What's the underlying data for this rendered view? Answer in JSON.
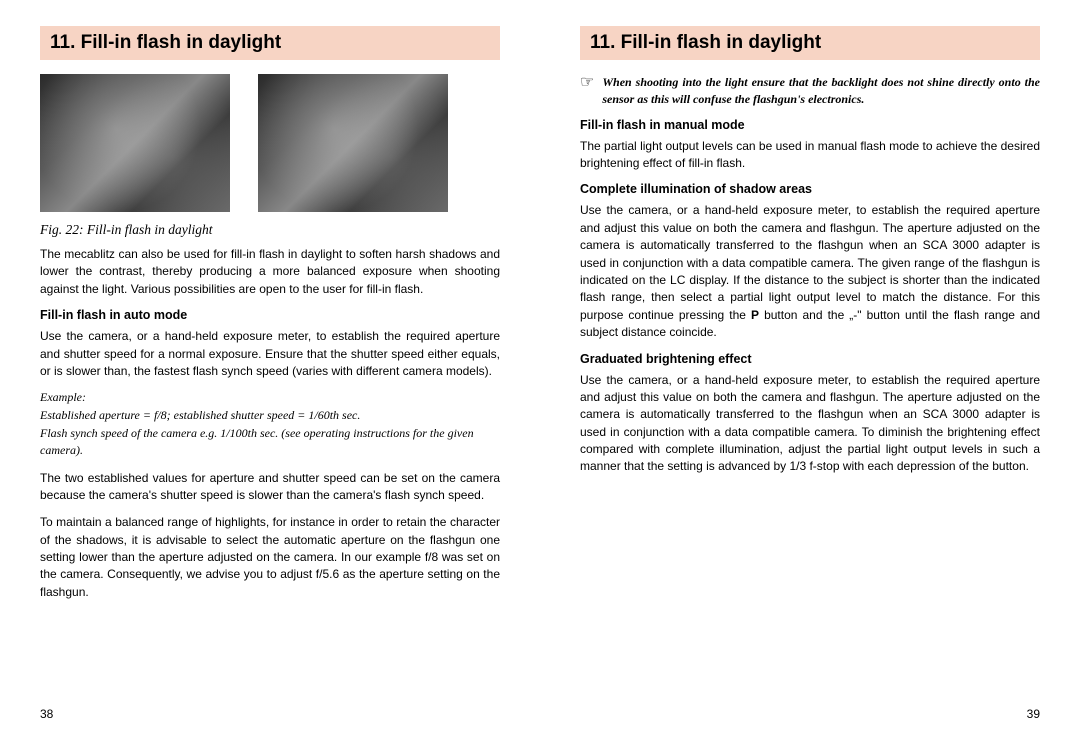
{
  "left": {
    "header": "11. Fill-in flash in daylight",
    "fig_caption": "Fig. 22: Fill-in flash in daylight",
    "intro": "The mecablitz can also be used for fill-in flash in daylight to soften harsh shadows and lower the contrast, thereby producing a more balanced exposure when shooting against the light. Various possibilities are open to the user for fill-in flash.",
    "sub1": "Fill-in flash in auto mode",
    "p1": "Use the camera, or a hand-held exposure meter, to establish the required aperture and shutter speed for a normal exposure. Ensure that the shutter speed either equals, or is slower than, the fastest flash synch speed (varies with different camera models).",
    "example_label": "Example:",
    "example_body": "Established aperture = f/8; established shutter speed = 1/60th sec.\nFlash synch speed of the camera e.g. 1/100th sec. (see operating instructions for the given camera).",
    "p2": "The two established values for aperture and shutter speed can be set on the camera because the camera's shutter speed is slower than the camera's flash synch speed.",
    "p3": "To maintain a balanced range of highlights, for instance in order to retain the character of the shadows, it is advisable to select the automatic aperture on the flashgun one setting lower than the aperture adjusted on the camera. In our example f/8 was set on the camera. Consequently, we advise you to adjust f/5.6 as the aperture setting on the flashgun.",
    "page_num": "38"
  },
  "right": {
    "header": "11. Fill-in flash in daylight",
    "note": "When shooting into the light ensure that the backlight does not shine directly onto the sensor as this will confuse the flashgun's electronics.",
    "sub1": "Fill-in flash in manual mode",
    "p1": "The partial light output levels can be used in manual flash mode to achieve the desired brightening effect of fill-in flash.",
    "sub2": "Complete illumination of shadow areas",
    "p2": "Use the camera, or a hand-held exposure meter, to establish the required aperture and adjust this value on both the camera and flashgun. The aperture adjusted on the camera is automatically transferred to the flashgun when an SCA 3000 adapter is used in conjunction with a data compatible camera. The given range of the flashgun is indicated on the LC display. If the distance to the subject is shorter than the indicated flash range, then select a partial light output level to match the distance. For this purpose continue pressing the P button and the „-\" button until the flash range and subject distance coincide.",
    "sub3": "Graduated brightening effect",
    "p3": "Use the camera, or a hand-held exposure meter, to establish the required aperture and adjust this value on both the camera and flashgun. The aperture adjusted on the camera is automatically transferred to the flashgun when an SCA 3000 adapter is used in conjunction with a data compatible camera. To diminish the brightening effect compared with complete illumination, adjust the partial light output levels in such a manner that the setting is advanced by 1/3 f-stop with each depression of the button.",
    "page_num": "39"
  },
  "colors": {
    "header_bg": "#f7d4c4",
    "text": "#000000",
    "page_bg": "#ffffff"
  }
}
